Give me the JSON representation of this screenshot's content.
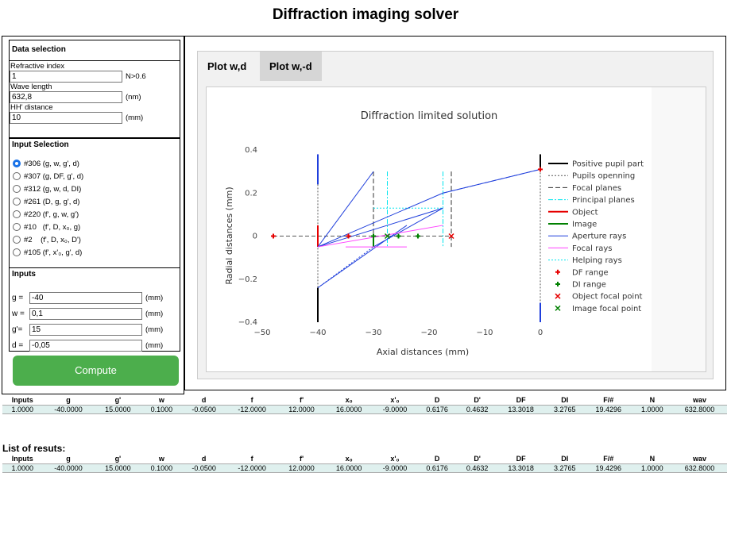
{
  "title": "Diffraction imaging solver",
  "data_selection": {
    "heading": "Data selection",
    "refractive_label": "Refractive index",
    "refractive_value": "1",
    "refractive_note": "N>0.6",
    "wavelength_label": "Wave length",
    "wavelength_value": "632,8",
    "wavelength_unit": "(nm)",
    "hh_label": "HH' distance",
    "hh_value": "10",
    "hh_unit": "(mm)"
  },
  "input_selection": {
    "heading": "Input Selection",
    "options": [
      "#306 (g, w, g', d)",
      "#307 (g, DF, g', d)",
      "#312 (g, w, d, DI)",
      "#261 (D, g, g', d)",
      "#220 (f', g, w, g')",
      "#10   (f', D, x₀, g)",
      "#2    (f', D, x₀, D')",
      "#105 (f', x'₀, g', d)"
    ],
    "selected": 0
  },
  "inputs": {
    "heading": "Inputs",
    "g_label": "g =",
    "g_value": "-40",
    "g_unit": "(mm)",
    "w_label": "w =",
    "w_value": "0,1",
    "w_unit": "(mm)",
    "gp_label": "g'=",
    "gp_value": "15",
    "gp_unit": "(mm)",
    "d_label": "d =",
    "d_value": "-0,05",
    "d_unit": "(mm)"
  },
  "compute_label": "Compute",
  "tabs": [
    "Plot w,d",
    "Plot w,-d"
  ],
  "active_tab": 1,
  "chart_data": {
    "type": "line",
    "title": "Diffraction limited solution",
    "xlabel": "Axial distances (mm)",
    "ylabel": "Radial distances (mm)",
    "xlim": [
      -50,
      0
    ],
    "ylim": [
      -0.4,
      0.4
    ],
    "xticks": [
      "−50",
      "−40",
      "−30",
      "−20",
      "−10",
      "0"
    ],
    "yticks": [
      "−0.4",
      "−0.2",
      "0",
      "0.2",
      "0.4"
    ],
    "xtick_values": [
      -50,
      -40,
      -30,
      -20,
      -10,
      0
    ],
    "ytick_values": [
      -0.4,
      -0.2,
      0,
      0.2,
      0.4
    ],
    "legend_position": "right",
    "legend": [
      {
        "name": "Positive pupil part",
        "style": "solid",
        "color": "#000000"
      },
      {
        "name": "Pupils openning",
        "style": "dotted",
        "color": "#555555"
      },
      {
        "name": "Focal planes",
        "style": "dashed",
        "color": "#333333"
      },
      {
        "name": "Principal planes",
        "style": "dashdot",
        "color": "#00e5ee"
      },
      {
        "name": "Object",
        "style": "solid",
        "color": "#e60000"
      },
      {
        "name": "Image",
        "style": "solid",
        "color": "#008000"
      },
      {
        "name": "Aperture rays",
        "style": "solid",
        "color": "#1f3fdc"
      },
      {
        "name": "Focal rays",
        "style": "solid",
        "color": "#ff40ff"
      },
      {
        "name": "Helping rays",
        "style": "dotted",
        "color": "#00e5ee"
      },
      {
        "name": "DF range",
        "style": "plus",
        "color": "#e60000"
      },
      {
        "name": "DI range",
        "style": "plus",
        "color": "#008000"
      },
      {
        "name": "Object focal point",
        "style": "x",
        "color": "#e60000"
      },
      {
        "name": "Image focal point",
        "style": "x",
        "color": "#008000"
      }
    ],
    "series": [
      {
        "kind": "pupil",
        "x": -40,
        "y": [
          0.24,
          0.38
        ],
        "color": "#1f3fdc"
      },
      {
        "kind": "pupil",
        "x": -40,
        "y": [
          -0.4,
          -0.24
        ],
        "color": "#000000"
      },
      {
        "kind": "pupil",
        "x": 0,
        "y": [
          0.31,
          0.38
        ],
        "color": "#000000"
      },
      {
        "kind": "pupil",
        "x": 0,
        "y": [
          -0.4,
          -0.31
        ],
        "color": "#1f3fdc"
      },
      {
        "kind": "object",
        "x": [
          -40,
          -40
        ],
        "y": [
          -0.05,
          0.05
        ],
        "color": "#e60000"
      },
      {
        "kind": "image",
        "x": [
          -30,
          -30
        ],
        "y": [
          -0.05,
          0
        ],
        "color": "#008000"
      },
      {
        "kind": "aperture",
        "x": [
          -40,
          -17.5
        ],
        "y": [
          -0.05,
          0.2
        ],
        "color": "#1f3fdc"
      },
      {
        "kind": "aperture",
        "x": [
          -40,
          -30
        ],
        "y": [
          -0.05,
          0.3
        ],
        "color": "#1f3fdc"
      },
      {
        "kind": "aperture",
        "x": [
          -40,
          -17.5
        ],
        "y": [
          -0.05,
          0.13
        ],
        "color": "#1f3fdc"
      },
      {
        "kind": "aperture",
        "x": [
          -30,
          -17.5
        ],
        "y": [
          -0.05,
          0.13
        ],
        "color": "#1f3fdc"
      },
      {
        "kind": "aperture",
        "x": [
          -17.5,
          0
        ],
        "y": [
          0.2,
          0.31
        ],
        "color": "#1f3fdc"
      },
      {
        "kind": "aperture",
        "x": [
          -40,
          -24
        ],
        "y": [
          -0.24,
          0.05
        ],
        "color": "#1f3fdc"
      },
      {
        "kind": "focal",
        "x": [
          -40,
          -17.5
        ],
        "y": [
          -0.05,
          0.05
        ],
        "color": "#ff40ff"
      },
      {
        "kind": "focal",
        "x": [
          -35,
          -24
        ],
        "y": [
          -0.05,
          -0.05
        ],
        "color": "#ff40ff"
      }
    ],
    "markers": [
      {
        "kind": "DF range",
        "x": -48,
        "y": 0
      },
      {
        "kind": "DF range",
        "x": -34.5,
        "y": 0
      },
      {
        "kind": "DF range",
        "x": 0,
        "y": 0.31
      },
      {
        "kind": "DI range",
        "x": -30,
        "y": 0
      },
      {
        "kind": "DI range",
        "x": -25.5,
        "y": 0
      },
      {
        "kind": "DI range",
        "x": -22,
        "y": 0
      },
      {
        "kind": "Object focal point",
        "x": -16,
        "y": 0
      },
      {
        "kind": "Image focal point",
        "x": -27.5,
        "y": 0
      }
    ]
  },
  "results_table": {
    "headers": [
      "Inputs",
      "g",
      "g'",
      "w",
      "d",
      "f",
      "f'",
      "x₀",
      "x'₀",
      "D",
      "D'",
      "DF",
      "DI",
      "F/#",
      "N",
      "wav"
    ],
    "rows": [
      [
        "1.0000",
        "-40.0000",
        "15.0000",
        "0.1000",
        "-0.0500",
        "-12.0000",
        "12.0000",
        "16.0000",
        "-9.0000",
        "0.6176",
        "0.4632",
        "13.3018",
        "3.2765",
        "19.4296",
        "1.0000",
        "632.8000"
      ]
    ]
  },
  "list_title": "List of resuts:",
  "list_table": {
    "headers": [
      "Inputs",
      "g",
      "g'",
      "w",
      "d",
      "f",
      "f'",
      "x₀",
      "x'₀",
      "D",
      "D'",
      "DF",
      "DI",
      "F/#",
      "N",
      "wav"
    ],
    "rows": [
      [
        "1.0000",
        "-40.0000",
        "15.0000",
        "0.1000",
        "-0.0500",
        "-12.0000",
        "12.0000",
        "16.0000",
        "-9.0000",
        "0.6176",
        "0.4632",
        "13.3018",
        "3.2765",
        "19.4296",
        "1.0000",
        "632.8000"
      ]
    ]
  }
}
